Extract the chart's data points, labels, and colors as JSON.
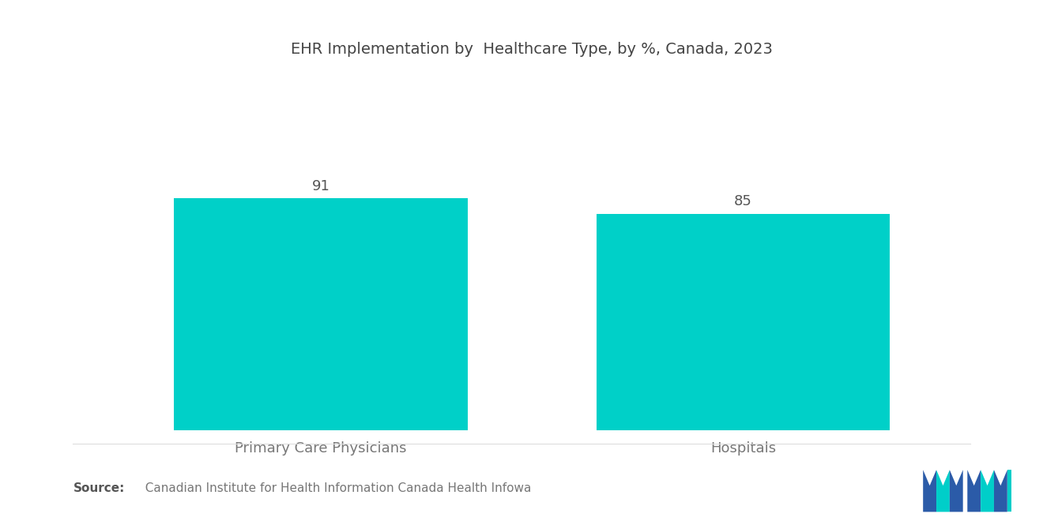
{
  "title": "EHR Implementation by  Healthcare Type, by %, Canada, 2023",
  "categories": [
    "Primary Care Physicians",
    "Hospitals"
  ],
  "values": [
    91,
    85
  ],
  "bar_color": "#00D0C8",
  "value_labels": [
    "91",
    "85"
  ],
  "source_bold": "Source:",
  "source_normal": "  Canadian Institute for Health Information Canada Health Infowa",
  "ylim": [
    0,
    140
  ],
  "background_color": "#ffffff",
  "title_fontsize": 14,
  "label_fontsize": 13,
  "value_fontsize": 13,
  "source_fontsize": 11,
  "bar_width": 0.32,
  "x_positions": [
    0.27,
    0.73
  ],
  "xlim": [
    0.0,
    1.0
  ]
}
